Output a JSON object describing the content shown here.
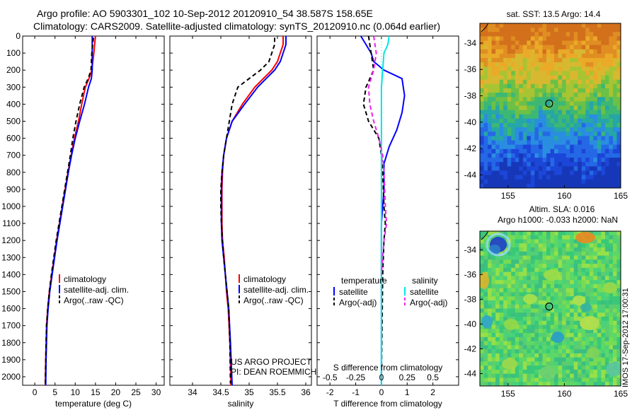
{
  "header": {
    "line1": "Argo profile: AO 5903301_102 10-Sep-2012 20120910_54 38.587S 158.65E",
    "line2": "Climatology: CARS2009. Satellite-adjusted climatology: synTS_20120910.nc (0.064d earlier)"
  },
  "stamp": "IMOS 17-Sep-2012 17:00:31",
  "colors": {
    "red": "#ff0000",
    "blue": "#0000ff",
    "black": "#000000",
    "cyan": "#00e5e5",
    "magenta": "#ee22ee"
  },
  "chart_data": [
    {
      "id": "temperature",
      "type": "line",
      "xlabel": "temperature (deg C)",
      "xlim": [
        -3,
        32
      ],
      "xticks": [
        0,
        5,
        10,
        15,
        20,
        25,
        30
      ],
      "ylim": [
        0,
        2050
      ],
      "yticks": [
        0,
        100,
        200,
        300,
        400,
        500,
        600,
        700,
        800,
        900,
        1000,
        1100,
        1200,
        1300,
        1400,
        1500,
        1600,
        1700,
        1800,
        1900,
        2000
      ],
      "legend": [
        "climatology",
        "satellite-adj. clim.",
        "Argo(..raw -QC)"
      ],
      "series": [
        {
          "name": "climatology",
          "color": "red",
          "dash": false,
          "x": [
            15,
            14.8,
            14.6,
            14.1,
            13.4,
            12.5,
            11.6,
            10.8,
            9.8,
            9.0,
            8.2,
            7.5,
            6.8,
            6.1,
            5.4,
            4.8,
            4.2,
            3.6,
            3.2,
            2.9,
            2.7,
            2.6
          ],
          "y": [
            0,
            50,
            100,
            200,
            250,
            300,
            400,
            500,
            600,
            700,
            800,
            900,
            1000,
            1100,
            1200,
            1300,
            1400,
            1500,
            1600,
            1700,
            1900,
            2050
          ]
        },
        {
          "name": "satellite-adj. clim.",
          "color": "blue",
          "dash": false,
          "x": [
            14.2,
            14.2,
            14.2,
            14.2,
            14.0,
            13.3,
            12.3,
            11.1,
            10.0,
            9.1,
            8.3,
            7.6,
            6.9,
            6.2,
            5.5,
            4.9,
            4.3,
            3.7,
            3.3,
            3.0,
            2.8,
            2.7
          ],
          "y": [
            0,
            50,
            100,
            200,
            250,
            300,
            400,
            500,
            600,
            700,
            800,
            900,
            1000,
            1100,
            1200,
            1300,
            1400,
            1500,
            1600,
            1700,
            1900,
            2050
          ]
        },
        {
          "name": "Argo(..raw -QC)",
          "color": "black",
          "dash": true,
          "x": [
            14.5,
            14.3,
            14.1,
            13.9,
            13.2,
            12.2,
            11.1,
            10.2,
            9.4,
            8.8,
            8.1,
            7.4,
            6.7,
            6.0,
            5.3,
            4.7,
            4.1,
            3.6,
            3.2,
            2.9,
            2.7,
            2.6
          ],
          "y": [
            10,
            50,
            100,
            200,
            250,
            300,
            400,
            500,
            600,
            700,
            800,
            900,
            1000,
            1100,
            1200,
            1300,
            1400,
            1500,
            1600,
            1700,
            1900,
            2040
          ]
        }
      ]
    },
    {
      "id": "salinity",
      "type": "line",
      "xlabel": "salinity",
      "xlim": [
        33.6,
        36.1
      ],
      "xticks": [
        34,
        34.5,
        35,
        35.5,
        36
      ],
      "xticklabels": [
        "34",
        "34.5",
        "35",
        "35.5",
        "36"
      ],
      "ylim": [
        0,
        2050
      ],
      "legend": [
        "climatology",
        "satellite-adj. clim.",
        "Argo(..raw -QC)"
      ],
      "annotation": [
        "US ARGO PROJECT",
        "PI: DEAN ROEMMICH"
      ],
      "series": [
        {
          "name": "climatology",
          "color": "red",
          "dash": false,
          "x": [
            35.6,
            35.6,
            35.55,
            35.5,
            35.4,
            35.25,
            35.1,
            34.88,
            34.7,
            34.6,
            34.55,
            34.53,
            34.52,
            34.52,
            34.52,
            34.53,
            34.56,
            34.58,
            34.6,
            34.63,
            34.66,
            34.68
          ],
          "y": [
            0,
            50,
            100,
            150,
            200,
            250,
            300,
            400,
            500,
            600,
            700,
            800,
            900,
            1000,
            1100,
            1200,
            1300,
            1400,
            1500,
            1600,
            1800,
            2050
          ]
        },
        {
          "name": "satellite-adj. clim.",
          "color": "blue",
          "dash": false,
          "x": [
            35.65,
            35.65,
            35.6,
            35.55,
            35.45,
            35.3,
            35.15,
            34.92,
            34.7,
            34.6,
            34.55,
            34.52,
            34.51,
            34.51,
            34.51,
            34.52,
            34.55,
            34.58,
            34.61,
            34.64,
            34.67,
            34.7
          ],
          "y": [
            0,
            50,
            100,
            150,
            200,
            250,
            300,
            400,
            500,
            600,
            700,
            800,
            900,
            1000,
            1100,
            1200,
            1300,
            1400,
            1500,
            1600,
            1800,
            2050
          ]
        },
        {
          "name": "Argo(..raw -QC)",
          "color": "black",
          "dash": true,
          "x": [
            35.45,
            35.45,
            35.4,
            35.35,
            35.2,
            35.0,
            34.8,
            34.7,
            34.6,
            34.55,
            34.52,
            34.5,
            34.5,
            34.51,
            34.53,
            34.55,
            34.58,
            34.61,
            34.64,
            34.66,
            34.67
          ],
          "y": [
            10,
            50,
            100,
            150,
            200,
            250,
            300,
            400,
            600,
            700,
            800,
            900,
            1000,
            1100,
            1200,
            1300,
            1400,
            1500,
            1600,
            1800,
            2040
          ]
        }
      ]
    },
    {
      "id": "difference",
      "type": "line",
      "xlabel": "T difference from climatology",
      "top_axis_label": "S difference from climatology",
      "xlim": [
        -2.5,
        3
      ],
      "xticks": [
        -2,
        -1,
        0,
        1,
        2
      ],
      "top_ticks": [
        -0.5,
        -0.25,
        0,
        0.25,
        0.5
      ],
      "ylim": [
        0,
        2050
      ],
      "legend": {
        "temperature": "temperature",
        "salinity": "salinity",
        "entries": [
          "satellite",
          "Argo(-adj)",
          "satellite",
          "Argo(-adj)"
        ]
      },
      "series": [
        {
          "name": "temperature satellite",
          "color": "blue",
          "dash": false,
          "x": [
            -0.8,
            -0.6,
            -0.4,
            -0.3,
            0.1,
            0.8,
            0.9,
            0.8,
            0.6,
            0.3,
            0.1,
            0.1,
            0.05,
            0.0,
            0.0,
            0.0,
            0.0,
            0.0,
            0.0,
            0.0,
            0.0,
            0.0
          ],
          "y": [
            0,
            50,
            100,
            150,
            200,
            250,
            350,
            450,
            550,
            650,
            750,
            900,
            1000,
            1100,
            1200,
            1300,
            1400,
            1600,
            1700,
            1800,
            1900,
            2050
          ]
        },
        {
          "name": "temperature Argo(-adj)",
          "color": "black",
          "dash": true,
          "x": [
            -0.5,
            -0.45,
            -0.4,
            -0.3,
            -0.6,
            -0.7,
            -0.5,
            -0.1,
            0.0,
            0.05,
            0.1,
            0.15,
            0.1,
            0.05,
            0.0
          ],
          "y": [
            0,
            50,
            100,
            200,
            300,
            400,
            500,
            600,
            700,
            800,
            1000,
            1100,
            1200,
            1400,
            2000
          ]
        },
        {
          "name": "salinity satellite",
          "color": "cyan",
          "dash": false,
          "x": [
            0.3,
            0.25,
            0.1,
            0.05,
            0.0,
            0.0,
            0.0,
            0.0,
            0.0,
            0.0,
            0.0,
            0.0,
            0.0,
            0.0,
            0.0
          ],
          "y": [
            0,
            50,
            100,
            200,
            300,
            400,
            600,
            800,
            1000,
            1200,
            1400,
            1600,
            1800,
            1900,
            2050
          ]
        },
        {
          "name": "salinity Argo(-adj)",
          "color": "magenta",
          "dash": true,
          "x": [
            -0.3,
            -0.25,
            -0.2,
            -0.3,
            -0.5,
            -0.45,
            -0.3,
            -0.1,
            0.05,
            0.1,
            0.15,
            0.2,
            0.1,
            0.05,
            0.0
          ],
          "y": [
            0,
            50,
            100,
            200,
            300,
            400,
            500,
            600,
            700,
            800,
            1000,
            1100,
            1200,
            1300,
            1400
          ]
        }
      ]
    },
    {
      "id": "sst-map",
      "type": "heatmap",
      "title": "sat. SST: 13.5 Argo: 14.4",
      "xlim": [
        152.5,
        165
      ],
      "ylim": [
        -45,
        -32.5
      ],
      "xticks": [
        155,
        160,
        165
      ],
      "yticks": [
        -34,
        -36,
        -38,
        -40,
        -42,
        -44
      ],
      "marker": {
        "lon": 158.65,
        "lat": -38.587
      }
    },
    {
      "id": "sla-map",
      "type": "heatmap",
      "title": [
        "Altim. SLA: 0.016",
        "Argo h1000: -0.033 h2000: NaN"
      ],
      "xlim": [
        152.5,
        165
      ],
      "ylim": [
        -45,
        -32.5
      ],
      "xticks": [
        155,
        160,
        165
      ],
      "yticks": [
        -34,
        -36,
        -38,
        -40,
        -42,
        -44
      ],
      "marker": {
        "lon": 158.65,
        "lat": -38.587
      }
    }
  ]
}
